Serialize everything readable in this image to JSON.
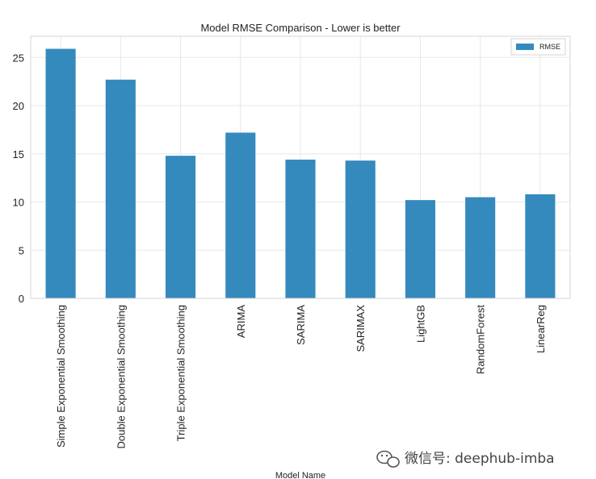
{
  "chart_data": {
    "type": "bar",
    "title": "Model RMSE Comparison - Lower is better",
    "xlabel": "Model Name",
    "ylabel": "",
    "categories": [
      "Simple Exponential Smoothing",
      "Double Exponential Smoothing",
      "Triple Exponential Smoothing",
      "ARIMA",
      "SARIMA",
      "SARIMAX",
      "LightGB",
      "RandomForest",
      "LinearReg"
    ],
    "series": [
      {
        "name": "RMSE",
        "values": [
          25.9,
          22.7,
          14.8,
          17.2,
          14.4,
          14.3,
          10.2,
          10.5,
          10.8
        ]
      }
    ],
    "ylim": [
      0,
      27.2
    ],
    "yticks": [
      0,
      5,
      10,
      15,
      20,
      25
    ],
    "grid": true,
    "legend_position": "top-right",
    "bar_color": "#348abd"
  },
  "watermark": {
    "text": "微信号: deephub-imba",
    "icon": "wechat-icon"
  }
}
